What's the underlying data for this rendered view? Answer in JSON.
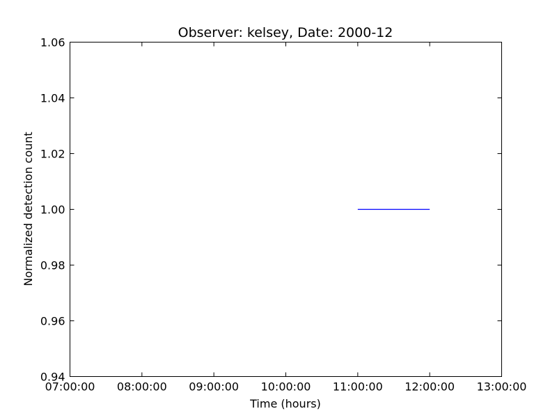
{
  "chart_data": {
    "type": "line",
    "title": "Observer: kelsey, Date: 2000-12",
    "xlabel": "Time (hours)",
    "ylabel": "Normalized detection count",
    "xlim": [
      "07:00:00",
      "13:00:00"
    ],
    "ylim": [
      0.94,
      1.06
    ],
    "x_ticks": [
      "07:00:00",
      "08:00:00",
      "09:00:00",
      "10:00:00",
      "11:00:00",
      "12:00:00",
      "13:00:00"
    ],
    "y_ticks": [
      "0.94",
      "0.96",
      "0.98",
      "1.00",
      "1.02",
      "1.04",
      "1.06"
    ],
    "grid": false,
    "series": [
      {
        "x": [
          "11:00:00",
          "12:00:00"
        ],
        "y": [
          1.0,
          1.0
        ],
        "color": "#0000ff"
      }
    ]
  }
}
